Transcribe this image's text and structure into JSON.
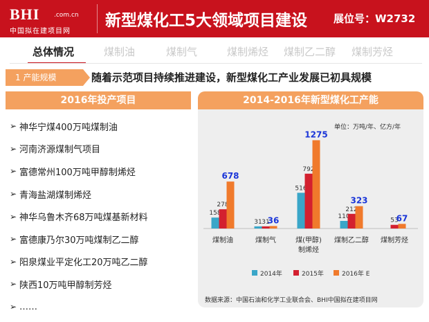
{
  "logo": {
    "main": "BHI",
    "domain": ".com.cn",
    "subtitle": "中国拟在建项目网"
  },
  "header": {
    "title": "新型煤化工5大领域项目建设",
    "booth": "展位号：W2732"
  },
  "tabs": [
    {
      "label": "总体情况",
      "active": true
    },
    {
      "label": "煤制油",
      "active": false
    },
    {
      "label": "煤制气",
      "active": false
    },
    {
      "label": "煤制烯烃",
      "active": false
    },
    {
      "label": "煤制乙二醇",
      "active": false
    },
    {
      "label": "煤制芳烃",
      "active": false
    }
  ],
  "section": {
    "badge": "1  产能规模",
    "headline": "随着示范项目持续推进建设，新型煤化工产业发展已初具规模"
  },
  "left_panel": {
    "title": "2016年投产项目",
    "projects": [
      "神华宁煤400万吨煤制油",
      "河南济源煤制气项目",
      "富德常州100万吨甲醇制烯烃",
      "青海盐湖煤制烯烃",
      "神华乌鲁木齐68万吨煤基新材料",
      "富德康乃尔30万吨煤制乙二醇",
      "阳泉煤业平定化工20万吨乙二醇",
      "陕西10万吨甲醇制芳烃",
      "……"
    ]
  },
  "right_panel": {
    "title": "2014-2016年新型煤化工产能",
    "unit": "单位：万吨/年、亿方/年",
    "source": "数据来源：中国石油和化学工业联合会、BHI中国拟在建项目网"
  },
  "colors": {
    "brand_red": "#c8121d",
    "accent_orange": "#f4a15f",
    "series_2014": "#3aa6c8",
    "series_2015": "#d3202f",
    "series_2016": "#f07a2c",
    "highlight_blue": "#1a35d8"
  },
  "chart_data": {
    "type": "bar",
    "title": "2014-2016年新型煤化工产能",
    "unit": "单位：万吨/年、亿方/年",
    "categories": [
      "煤制油",
      "煤制气",
      "煤(甲醇)\n制烯烃",
      "煤制乙二醇",
      "煤制芳烃"
    ],
    "series": [
      {
        "name": "2014年",
        "color": "#3aa6c8",
        "values": [
          158,
          31,
          516,
          110,
          null
        ]
      },
      {
        "name": "2015年",
        "color": "#d3202f",
        "values": [
          278,
          31,
          792,
          212,
          53
        ]
      },
      {
        "name": "2016年 E",
        "color": "#f07a2c",
        "values": [
          678,
          36,
          1275,
          323,
          67
        ]
      }
    ],
    "ylim": [
      0,
      1400
    ],
    "legend": "bottom"
  }
}
